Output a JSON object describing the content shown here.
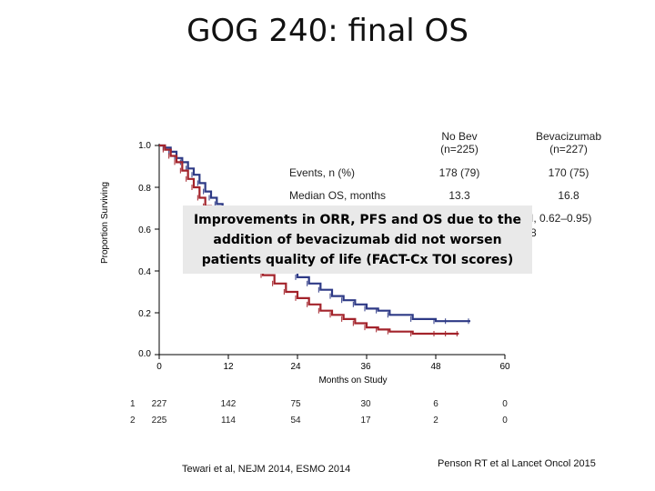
{
  "slide_title": "GOG 240: final OS",
  "y_axis_label": "Proportion Surviving",
  "x_axis_label": "Months on Study",
  "stats_table": {
    "arm1_header_line1": "No Bev",
    "arm1_header_line2": "(n=225)",
    "arm2_header_line1": "Bevacizumab",
    "arm2_header_line2": "(n=227)",
    "rows": [
      {
        "label": "Events, n (%)",
        "arm1": "178 (79)",
        "arm2": "170 (75)"
      },
      {
        "label": "Median OS, months",
        "arm1": "13.3",
        "arm2": "16.8"
      }
    ],
    "partial_text_1": "I, 0.62–0.95)",
    "partial_text_2": "8"
  },
  "callout_text": "Improvements in ORR, PFS and OS due to the addition of bevacizumab did not worsen patients quality of life (FACT-Cx TOI scores)",
  "at_risk": {
    "rows": [
      {
        "arm": "1",
        "values": [
          "227",
          "142",
          "75",
          "30",
          "6",
          "0"
        ]
      },
      {
        "arm": "2",
        "values": [
          "225",
          "114",
          "54",
          "17",
          "2",
          "0"
        ]
      }
    ]
  },
  "citations": {
    "left": "Tewari et al, NEJM 2014, ESMO 2014",
    "right": "Penson RT et al Lancet Oncol 2015"
  },
  "chart_data": {
    "type": "line",
    "xlabel": "Months on Study",
    "ylabel": "Proportion Surviving",
    "xlim": [
      0,
      60
    ],
    "ylim": [
      0.0,
      1.0
    ],
    "x_ticks": [
      "0",
      "12",
      "24",
      "36",
      "48",
      "60"
    ],
    "y_ticks": [
      "0.0",
      "0.2",
      "0.4",
      "0.6",
      "0.8",
      "1.0"
    ],
    "series": [
      {
        "name": "Bevacizumab",
        "color": "#2e3a86",
        "x": [
          0,
          1,
          2,
          3,
          4,
          5,
          6,
          7,
          8,
          9,
          10,
          11,
          12,
          13,
          14,
          15,
          16,
          17,
          18,
          20,
          22,
          24,
          26,
          28,
          30,
          32,
          34,
          36,
          38,
          40,
          44,
          48,
          50,
          54
        ],
        "y": [
          1.0,
          0.99,
          0.97,
          0.94,
          0.92,
          0.89,
          0.86,
          0.82,
          0.78,
          0.75,
          0.72,
          0.68,
          0.65,
          0.62,
          0.59,
          0.56,
          0.53,
          0.5,
          0.48,
          0.44,
          0.41,
          0.37,
          0.34,
          0.31,
          0.28,
          0.26,
          0.24,
          0.22,
          0.21,
          0.19,
          0.17,
          0.16,
          0.16,
          0.16
        ]
      },
      {
        "name": "No Bev",
        "color": "#a3232b",
        "x": [
          0,
          1,
          2,
          3,
          4,
          5,
          6,
          7,
          8,
          9,
          10,
          11,
          12,
          13,
          14,
          15,
          16,
          18,
          20,
          22,
          24,
          26,
          28,
          30,
          32,
          34,
          36,
          38,
          40,
          44,
          48,
          50,
          52
        ],
        "y": [
          1.0,
          0.98,
          0.95,
          0.92,
          0.88,
          0.84,
          0.8,
          0.75,
          0.71,
          0.67,
          0.63,
          0.59,
          0.55,
          0.52,
          0.49,
          0.46,
          0.43,
          0.38,
          0.34,
          0.3,
          0.27,
          0.24,
          0.21,
          0.19,
          0.17,
          0.15,
          0.13,
          0.12,
          0.11,
          0.1,
          0.1,
          0.1,
          0.1
        ]
      }
    ]
  }
}
